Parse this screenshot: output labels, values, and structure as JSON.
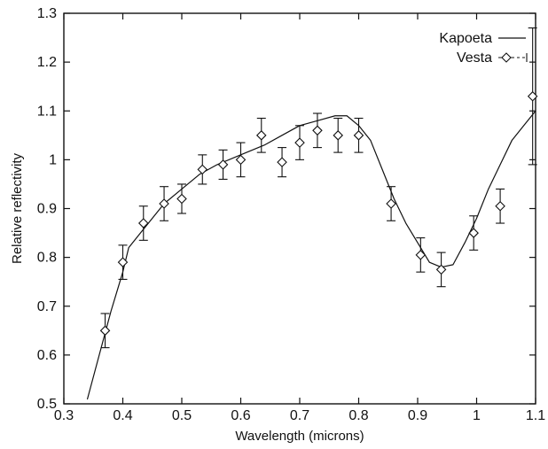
{
  "chart_data": {
    "type": "line",
    "title": "",
    "xlabel": "Wavelength (microns)",
    "ylabel": "Relative reflectivity",
    "xlim": [
      0.3,
      1.1
    ],
    "ylim": [
      0.5,
      1.3
    ],
    "xticks": [
      0.3,
      0.4,
      0.5,
      0.6,
      0.7,
      0.8,
      0.9,
      1.0,
      1.1
    ],
    "xtick_labels": [
      "0.3",
      "0.4",
      "0.5",
      "0.6",
      "0.7",
      "0.8",
      "0.9",
      "1",
      "1.1"
    ],
    "yticks": [
      0.5,
      0.6,
      0.7,
      0.8,
      0.9,
      1.0,
      1.1,
      1.2,
      1.3
    ],
    "ytick_labels": [
      "0.5",
      "0.6",
      "0.7",
      "0.8",
      "0.9",
      "1",
      "1.1",
      "1.2",
      "1.3"
    ],
    "grid": false,
    "legend_position": "top-right",
    "colors": {
      "axis": "#111111",
      "series": "#111111"
    },
    "series": [
      {
        "name": "Kapoeta",
        "style": "solid-line",
        "points": [
          [
            0.34,
            0.51
          ],
          [
            0.36,
            0.6
          ],
          [
            0.38,
            0.69
          ],
          [
            0.4,
            0.77
          ],
          [
            0.41,
            0.82
          ],
          [
            0.43,
            0.85
          ],
          [
            0.45,
            0.88
          ],
          [
            0.47,
            0.91
          ],
          [
            0.5,
            0.94
          ],
          [
            0.53,
            0.97
          ],
          [
            0.56,
            0.99
          ],
          [
            0.6,
            1.01
          ],
          [
            0.64,
            1.03
          ],
          [
            0.67,
            1.05
          ],
          [
            0.7,
            1.07
          ],
          [
            0.73,
            1.08
          ],
          [
            0.76,
            1.09
          ],
          [
            0.78,
            1.09
          ],
          [
            0.8,
            1.07
          ],
          [
            0.82,
            1.04
          ],
          [
            0.84,
            0.98
          ],
          [
            0.86,
            0.92
          ],
          [
            0.88,
            0.87
          ],
          [
            0.9,
            0.83
          ],
          [
            0.92,
            0.79
          ],
          [
            0.94,
            0.78
          ],
          [
            0.96,
            0.785
          ],
          [
            0.98,
            0.83
          ],
          [
            1.0,
            0.88
          ],
          [
            1.02,
            0.94
          ],
          [
            1.04,
            0.99
          ],
          [
            1.06,
            1.04
          ],
          [
            1.08,
            1.07
          ],
          [
            1.1,
            1.1
          ]
        ]
      },
      {
        "name": "Vesta",
        "style": "diamond-markers-with-error-bars",
        "points": [
          {
            "x": 0.37,
            "y": 0.65,
            "err": 0.035
          },
          {
            "x": 0.4,
            "y": 0.79,
            "err": 0.035
          },
          {
            "x": 0.435,
            "y": 0.87,
            "err": 0.035
          },
          {
            "x": 0.47,
            "y": 0.91,
            "err": 0.035
          },
          {
            "x": 0.5,
            "y": 0.92,
            "err": 0.03
          },
          {
            "x": 0.535,
            "y": 0.98,
            "err": 0.03
          },
          {
            "x": 0.57,
            "y": 0.99,
            "err": 0.03
          },
          {
            "x": 0.6,
            "y": 1.0,
            "err": 0.035
          },
          {
            "x": 0.635,
            "y": 1.05,
            "err": 0.035
          },
          {
            "x": 0.67,
            "y": 0.995,
            "err": 0.03
          },
          {
            "x": 0.7,
            "y": 1.035,
            "err": 0.035
          },
          {
            "x": 0.73,
            "y": 1.06,
            "err": 0.035
          },
          {
            "x": 0.765,
            "y": 1.05,
            "err": 0.035
          },
          {
            "x": 0.8,
            "y": 1.05,
            "err": 0.035
          },
          {
            "x": 0.855,
            "y": 0.91,
            "err": 0.035
          },
          {
            "x": 0.905,
            "y": 0.805,
            "err": 0.035
          },
          {
            "x": 0.94,
            "y": 0.775,
            "err": 0.035
          },
          {
            "x": 0.995,
            "y": 0.85,
            "err": 0.035
          },
          {
            "x": 1.04,
            "y": 0.905,
            "err": 0.035
          },
          {
            "x": 1.095,
            "y": 1.13,
            "err": 0.14
          }
        ]
      }
    ]
  }
}
